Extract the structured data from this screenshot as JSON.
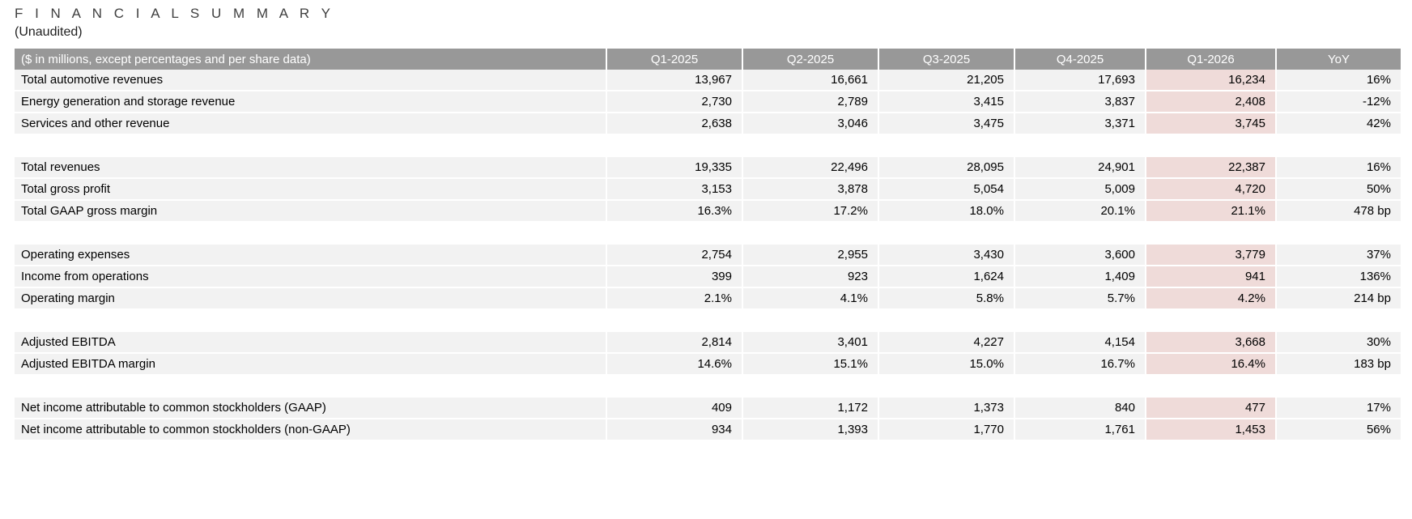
{
  "page": {
    "title": "F I N A N C I A L   S U M M A R Y",
    "subtitle": "(Unaudited)"
  },
  "table": {
    "header": {
      "label": "($ in millions, except percentages and per share data)",
      "columns": [
        "Q1-2025",
        "Q2-2025",
        "Q3-2025",
        "Q4-2025",
        "Q1-2026",
        "YoY"
      ]
    },
    "highlight_column": "Q1-2026",
    "highlight_column_index": 4,
    "colors": {
      "header_bg": "#989898",
      "header_text": "#ffffff",
      "row_bg": "#f2f2f2",
      "highlight_bg": "#efdbd9",
      "title_text": "#3f3f3f",
      "body_text": "#000000"
    },
    "groups": [
      {
        "rows": [
          {
            "label": "Total automotive revenues",
            "values": [
              "13,967",
              "16,661",
              "21,205",
              "17,693",
              "16,234",
              "16%"
            ]
          },
          {
            "label": "Energy generation and storage revenue",
            "values": [
              "2,730",
              "2,789",
              "3,415",
              "3,837",
              "2,408",
              "-12%"
            ]
          },
          {
            "label": "Services and other revenue",
            "values": [
              "2,638",
              "3,046",
              "3,475",
              "3,371",
              "3,745",
              "42%"
            ]
          }
        ]
      },
      {
        "rows": [
          {
            "label": "Total revenues",
            "values": [
              "19,335",
              "22,496",
              "28,095",
              "24,901",
              "22,387",
              "16%"
            ]
          },
          {
            "label": "Total gross profit",
            "values": [
              "3,153",
              "3,878",
              "5,054",
              "5,009",
              "4,720",
              "50%"
            ]
          },
          {
            "label": "Total GAAP gross margin",
            "values": [
              "16.3%",
              "17.2%",
              "18.0%",
              "20.1%",
              "21.1%",
              "478 bp"
            ]
          }
        ]
      },
      {
        "rows": [
          {
            "label": "Operating expenses",
            "values": [
              "2,754",
              "2,955",
              "3,430",
              "3,600",
              "3,779",
              "37%"
            ]
          },
          {
            "label": "Income from operations",
            "values": [
              "399",
              "923",
              "1,624",
              "1,409",
              "941",
              "136%"
            ]
          },
          {
            "label": "Operating margin",
            "values": [
              "2.1%",
              "4.1%",
              "5.8%",
              "5.7%",
              "4.2%",
              "214 bp"
            ]
          }
        ]
      },
      {
        "rows": [
          {
            "label": "Adjusted EBITDA",
            "values": [
              "2,814",
              "3,401",
              "4,227",
              "4,154",
              "3,668",
              "30%"
            ]
          },
          {
            "label": "Adjusted EBITDA margin",
            "values": [
              "14.6%",
              "15.1%",
              "15.0%",
              "16.7%",
              "16.4%",
              "183 bp"
            ]
          }
        ]
      },
      {
        "rows": [
          {
            "label": "Net income attributable to common stockholders (GAAP)",
            "values": [
              "409",
              "1,172",
              "1,373",
              "840",
              "477",
              "17%"
            ]
          },
          {
            "label": "Net income attributable to common stockholders (non-GAAP)",
            "values": [
              "934",
              "1,393",
              "1,770",
              "1,761",
              "1,453",
              "56%"
            ]
          }
        ]
      }
    ]
  }
}
